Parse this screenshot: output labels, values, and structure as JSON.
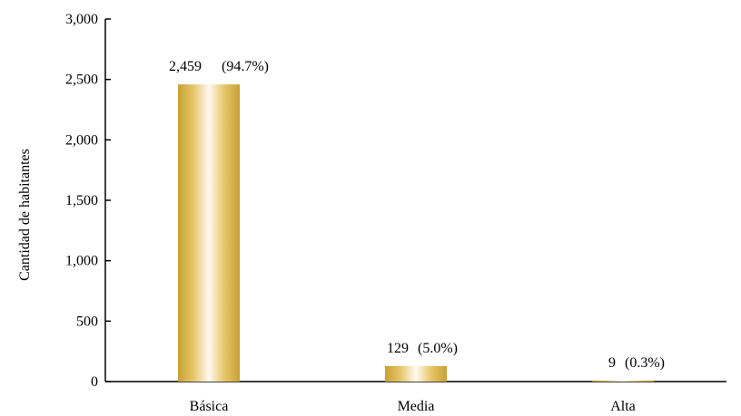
{
  "chart_data": {
    "type": "bar",
    "categories": [
      "Básica",
      "Media",
      "Alta"
    ],
    "values": [
      2459,
      129,
      9
    ],
    "value_labels": [
      "2,459",
      "129",
      "9"
    ],
    "percent_labels": [
      "(94.7%)",
      "(5.0%)",
      "(0.3%)"
    ],
    "title": "",
    "xlabel": "",
    "ylabel": "Cantidad de habitantes",
    "ylim": [
      0,
      3000
    ],
    "yticks": [
      0,
      500,
      1000,
      1500,
      2000,
      2500,
      3000
    ],
    "ytick_labels": [
      "0",
      "500",
      "1,000",
      "1,500",
      "2,000",
      "2,500",
      "3,000"
    ],
    "grid": false,
    "legend": "none",
    "colors": {
      "bar_edge": "#c9a032",
      "bar_mid": "#e6c56a",
      "bar_center": "#fffaf0",
      "axis": "#000000"
    }
  }
}
